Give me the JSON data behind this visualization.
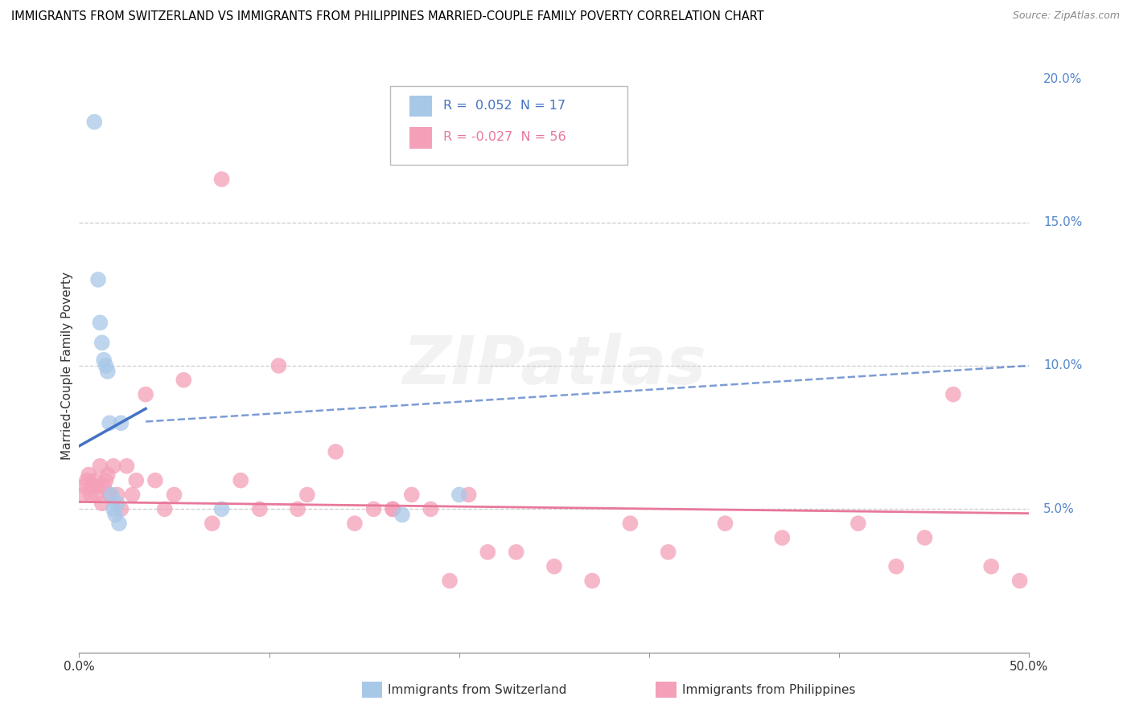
{
  "title": "IMMIGRANTS FROM SWITZERLAND VS IMMIGRANTS FROM PHILIPPINES MARRIED-COUPLE FAMILY POVERTY CORRELATION CHART",
  "source": "Source: ZipAtlas.com",
  "ylabel": "Married-Couple Family Poverty",
  "x_min": 0.0,
  "x_max": 50.0,
  "y_min": 0.0,
  "y_max": 20.0,
  "switzerland_R": 0.052,
  "switzerland_N": 17,
  "philippines_R": -0.027,
  "philippines_N": 56,
  "switzerland_color": "#a8c8e8",
  "switzerland_line_color": "#4472c4",
  "philippines_color": "#f4a0b8",
  "philippines_line_color": "#e8789a",
  "legend_text_color_sw": "#4472c4",
  "legend_text_color_ph": "#e8789a",
  "ytick_color": "#5588cc",
  "sw_trend_start_y": 7.2,
  "sw_trend_end_y": 8.5,
  "ph_trend_start_y": 5.25,
  "ph_trend_end_y": 4.85,
  "sw_trend_x_start": 0.0,
  "sw_trend_x_end": 3.5,
  "sw_dashed_x_start": 3.5,
  "sw_dashed_x_end": 50.0,
  "sw_dashed_start_y": 8.05,
  "sw_dashed_end_y": 10.0,
  "switzerland_x": [
    0.8,
    1.0,
    1.1,
    1.2,
    1.3,
    1.4,
    1.5,
    1.6,
    1.7,
    1.8,
    1.9,
    2.0,
    2.1,
    2.2,
    7.5,
    17.0,
    20.0
  ],
  "switzerland_y": [
    18.5,
    13.0,
    11.5,
    10.8,
    10.2,
    10.0,
    9.8,
    8.0,
    5.5,
    5.0,
    4.8,
    5.2,
    4.5,
    8.0,
    5.0,
    4.8,
    5.5
  ],
  "philippines_x": [
    0.2,
    0.3,
    0.4,
    0.5,
    0.6,
    0.7,
    0.8,
    0.9,
    1.0,
    1.1,
    1.2,
    1.3,
    1.4,
    1.5,
    1.6,
    1.8,
    2.0,
    2.2,
    2.5,
    2.8,
    3.0,
    3.5,
    4.0,
    4.5,
    5.0,
    5.5,
    7.0,
    7.5,
    8.5,
    9.5,
    10.5,
    11.5,
    12.0,
    13.5,
    14.5,
    15.5,
    16.5,
    17.5,
    18.5,
    19.5,
    20.5,
    21.5,
    23.0,
    25.0,
    27.0,
    29.0,
    31.0,
    34.0,
    37.0,
    41.0,
    43.0,
    44.5,
    46.0,
    48.0,
    49.5,
    16.5
  ],
  "philippines_y": [
    5.5,
    5.8,
    6.0,
    6.2,
    5.5,
    5.8,
    6.0,
    5.5,
    5.8,
    6.5,
    5.2,
    5.8,
    6.0,
    6.2,
    5.5,
    6.5,
    5.5,
    5.0,
    6.5,
    5.5,
    6.0,
    9.0,
    6.0,
    5.0,
    5.5,
    9.5,
    4.5,
    16.5,
    6.0,
    5.0,
    10.0,
    5.0,
    5.5,
    7.0,
    4.5,
    5.0,
    5.0,
    5.5,
    5.0,
    2.5,
    5.5,
    3.5,
    3.5,
    3.0,
    2.5,
    4.5,
    3.5,
    4.5,
    4.0,
    4.5,
    3.0,
    4.0,
    9.0,
    3.0,
    2.5,
    5.0
  ]
}
